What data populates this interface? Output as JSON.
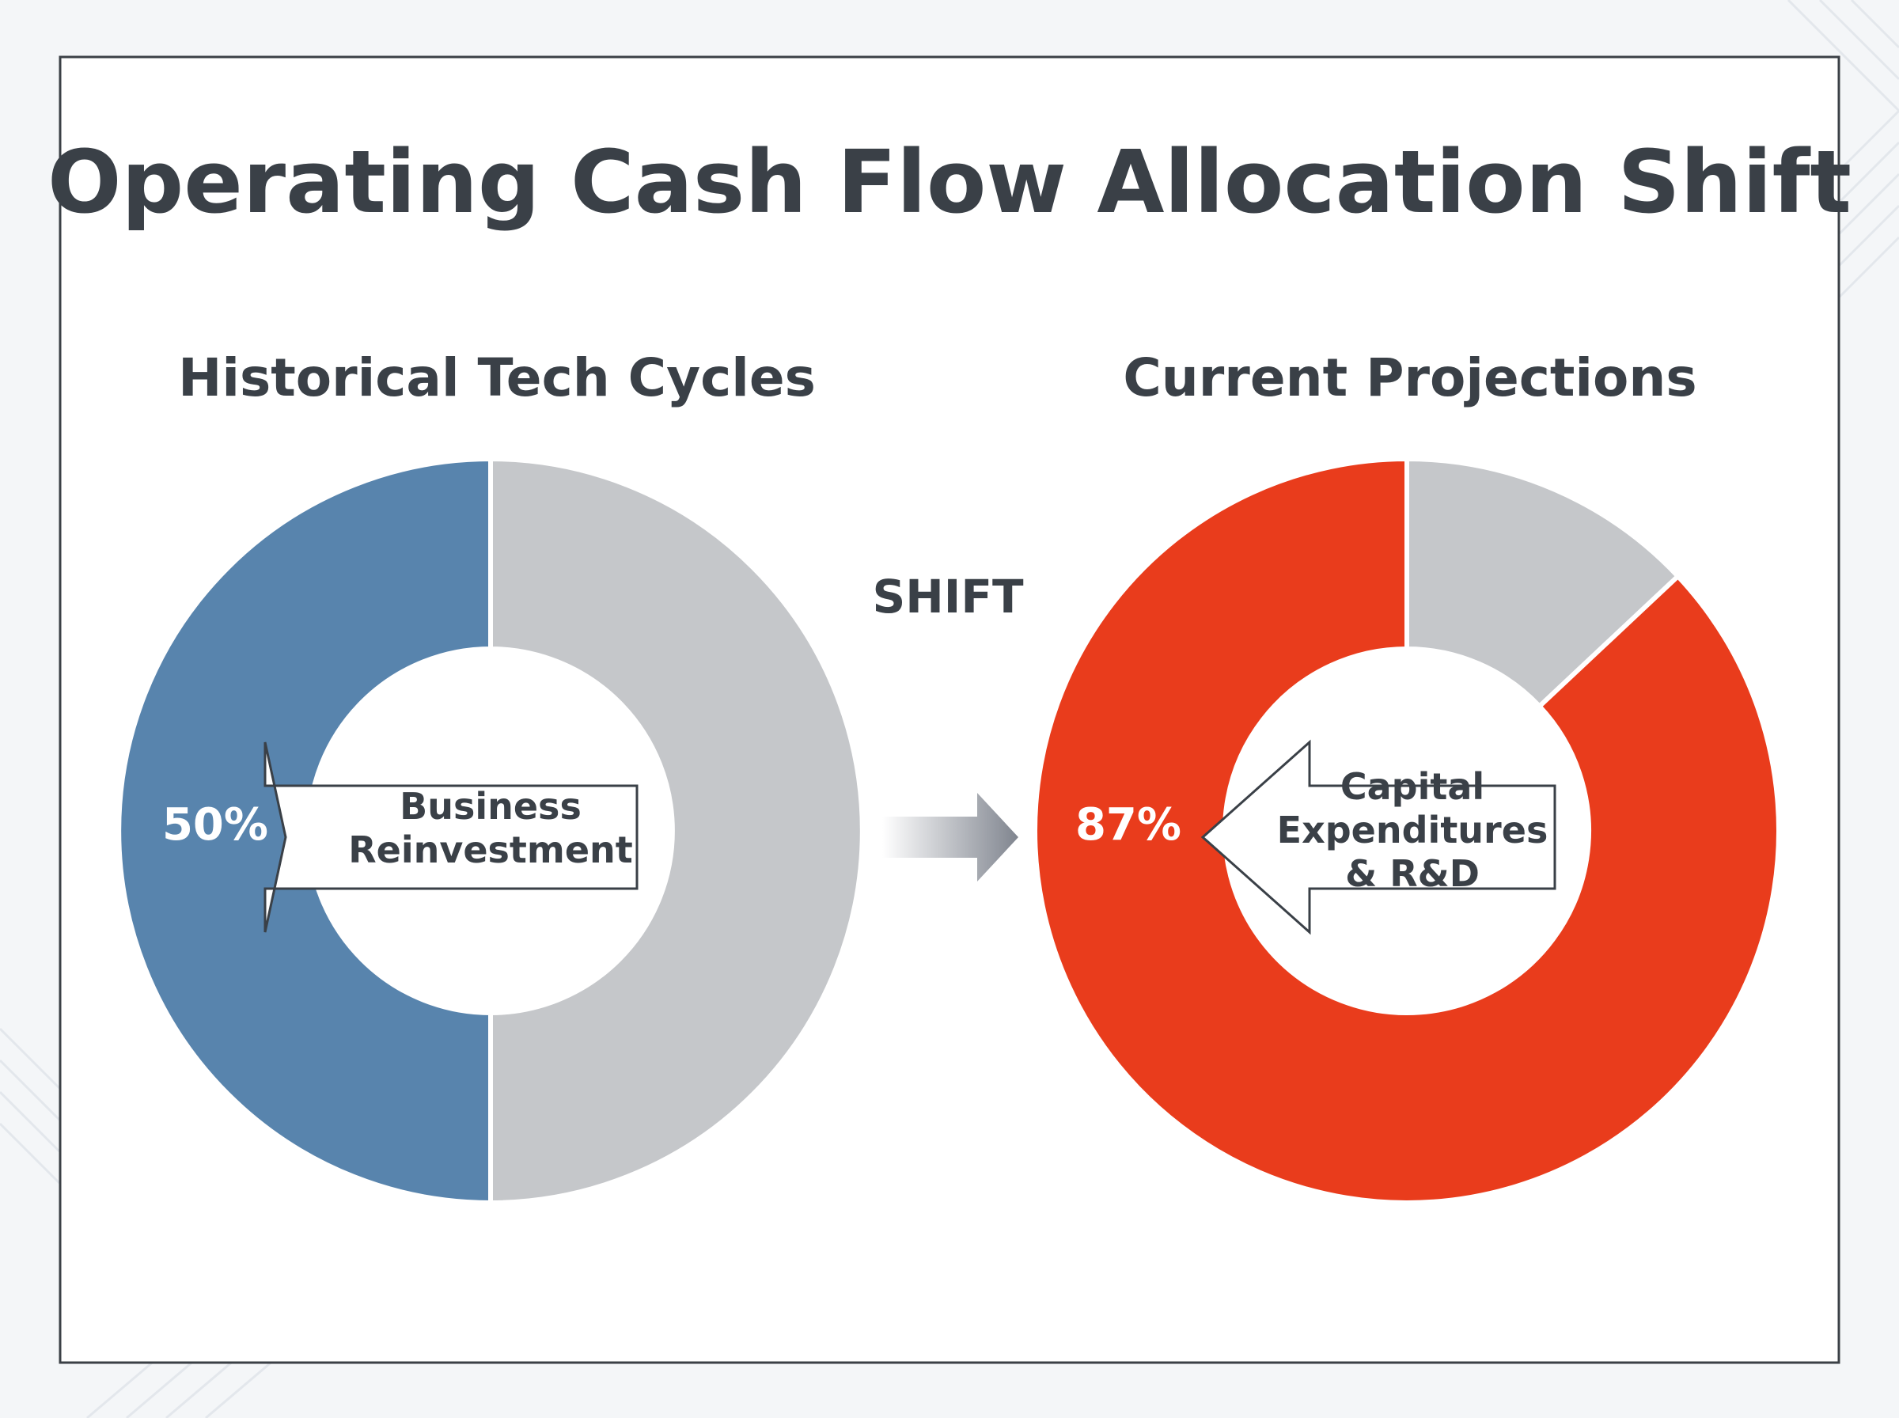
{
  "title": "Operating Cash Flow Allocation Shift",
  "shift_label": "SHIFT",
  "colors": {
    "background": "#f4f6f8",
    "panel": "#ffffff",
    "text": "#3a4047",
    "historical_share": "#5884ad",
    "current_share": "#e93c1c",
    "remainder": "#c5c7ca",
    "shift_arrow": "#80858f"
  },
  "chart_data": [
    {
      "type": "pie",
      "title": "Historical Tech Cycles",
      "slices": [
        {
          "label": "Business Reinvestment",
          "value": 50,
          "display": "50%",
          "color": "#5884ad"
        },
        {
          "label": "",
          "value": 50,
          "display": "",
          "color": "#c5c7ca"
        }
      ],
      "callout": {
        "lines": [
          "Business",
          "Reinvestment"
        ]
      },
      "legend": "none"
    },
    {
      "type": "pie",
      "title": "Current Projections",
      "slices": [
        {
          "label": "Capital Expenditures & R&D",
          "value": 87,
          "display": "87%",
          "color": "#e93c1c"
        },
        {
          "label": "",
          "value": 13,
          "display": "",
          "color": "#c5c7ca"
        }
      ],
      "callout": {
        "lines": [
          "Capital",
          "Expenditures",
          "& R&D"
        ]
      },
      "legend": "none"
    }
  ]
}
